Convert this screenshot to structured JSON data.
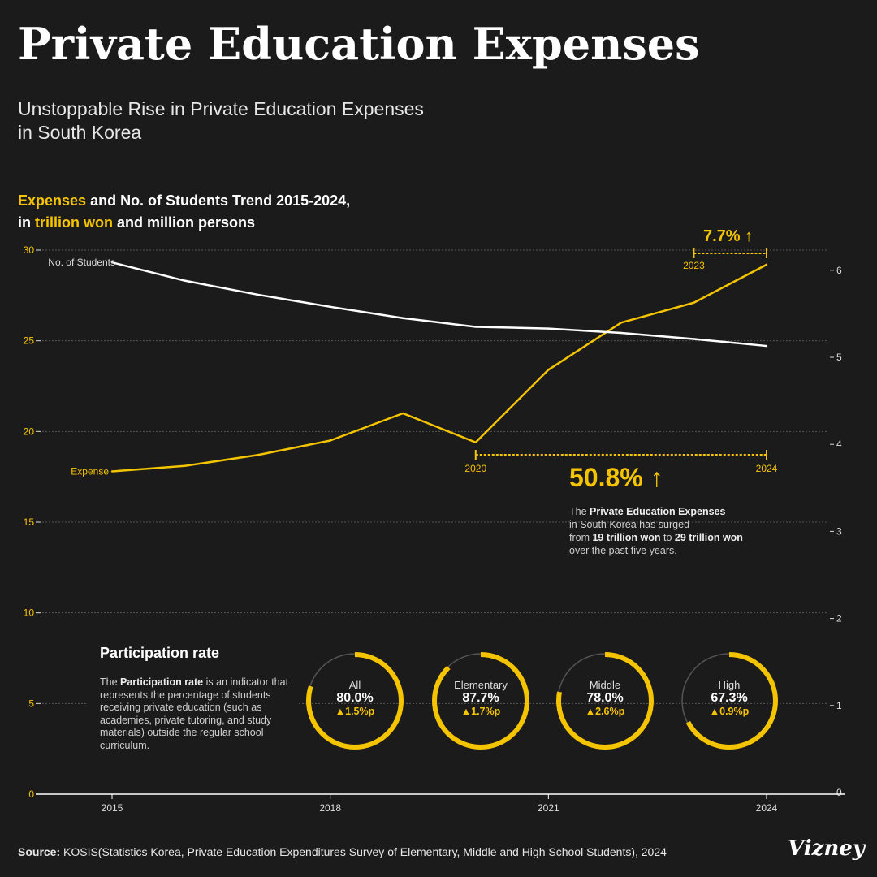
{
  "header": {
    "title": "Private Education Expenses",
    "subtitle_line1": "Unstoppable Rise in Private Education Expenses",
    "subtitle_line2": "in South Korea"
  },
  "chart_heading": {
    "part1": "Expenses",
    "part2": " and No. of Students Trend 2015-2024,",
    "part3": "in ",
    "part4": "trillion won",
    "part5": " and million persons"
  },
  "chart_data": {
    "type": "line",
    "x": [
      2015,
      2016,
      2017,
      2018,
      2019,
      2020,
      2021,
      2022,
      2023,
      2024
    ],
    "x_tick_labels": [
      "2015",
      "2018",
      "2021",
      "2024"
    ],
    "left_axis": {
      "ylim": [
        0,
        30
      ],
      "ticks": [
        "0",
        "5",
        "10",
        "15",
        "20",
        "25",
        "30"
      ],
      "unit": "trillion won",
      "color": "#f5c400"
    },
    "right_axis": {
      "ylim": [
        0,
        6.3
      ],
      "ticks": [
        "0",
        "1",
        "2",
        "3",
        "4",
        "5",
        "6"
      ],
      "unit": "million persons",
      "color": "#ffffff"
    },
    "grid": true,
    "series": [
      {
        "name": "Expense",
        "axis": "left",
        "color": "#f5c400",
        "values": [
          17.8,
          18.1,
          18.7,
          19.5,
          21.0,
          19.4,
          23.4,
          26.0,
          27.1,
          29.2
        ]
      },
      {
        "name": "No. of Students",
        "axis": "right",
        "color": "#ffffff",
        "values": [
          6.09,
          5.88,
          5.72,
          5.58,
          5.45,
          5.35,
          5.33,
          5.28,
          5.21,
          5.13
        ]
      }
    ],
    "annotations": [
      {
        "from": "2020",
        "to": "2024",
        "label": "50.8% ↑"
      },
      {
        "from": "2023",
        "to": "2024",
        "label": "7.7% ↑"
      }
    ]
  },
  "note": {
    "t1": "The ",
    "t2": "Private Education Expenses",
    "t3": "in South Korea has surged",
    "t4": "from ",
    "t5": "19 trillion won",
    "t6": " to ",
    "t7": "29 trillion won",
    "t8": "over the past five years."
  },
  "participation": {
    "title": "Participation rate",
    "desc1": "The ",
    "desc2": "Participation rate",
    "desc3": " is an indicator that represents the percentage of students receiving private education (such as academies, private tutoring, and study materials) outside the regular school curriculum.",
    "items": [
      {
        "name": "All",
        "value": "80.0%",
        "rate": 80.0,
        "change": "▲1.5%p"
      },
      {
        "name": "Elementary",
        "value": "87.7%",
        "rate": 87.7,
        "change": "▲1.7%p"
      },
      {
        "name": "Middle",
        "value": "78.0%",
        "rate": 78.0,
        "change": "▲2.6%p"
      },
      {
        "name": "High",
        "value": "67.3%",
        "rate": 67.3,
        "change": "▲0.9%p"
      }
    ]
  },
  "footer": {
    "source_label": "Source:",
    "source_text": " KOSIS(Statistics Korea, Private Education Expenditures Survey of Elementary, Middle and High School Students), 2024",
    "logo": "Vizney"
  },
  "colors": {
    "background": "#1b1b1b",
    "accent": "#f5c400",
    "secondary": "#ffffff"
  }
}
